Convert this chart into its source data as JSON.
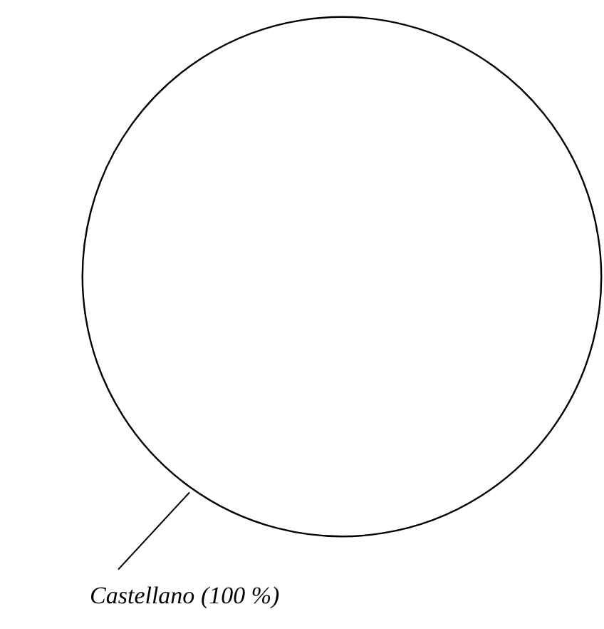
{
  "chart_data": {
    "type": "pie",
    "categories": [
      "Castellano"
    ],
    "values": [
      100
    ],
    "colors": [
      "#ffffff"
    ],
    "value_labels": [
      "(100 %)"
    ]
  }
}
